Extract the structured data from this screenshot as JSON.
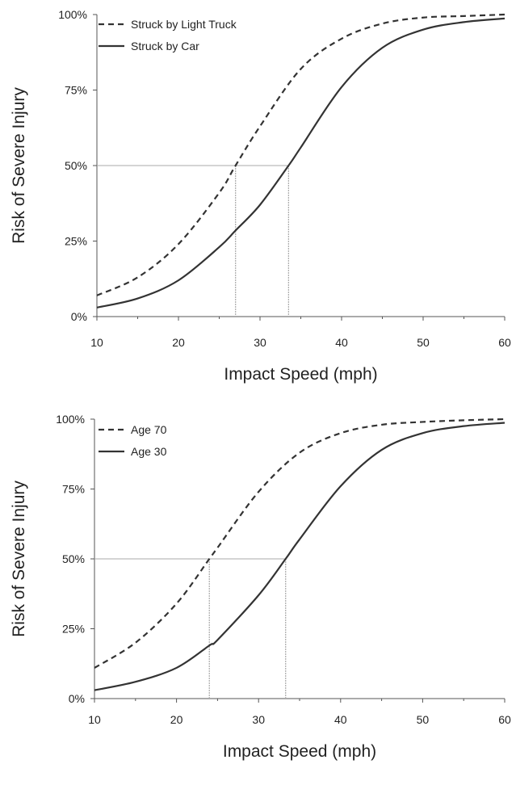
{
  "chart_data": [
    {
      "type": "line",
      "xlabel": "Impact Speed (mph)",
      "ylabel": "Risk of Severe Injury",
      "xlim": [
        10,
        60
      ],
      "ylim": [
        0,
        100
      ],
      "xticks": [
        "10",
        "20",
        "30",
        "40",
        "50",
        "60"
      ],
      "yticks": [
        "0%",
        "25%",
        "50%",
        "75%",
        "100%"
      ],
      "grid": false,
      "legend_position": "top-left",
      "series": [
        {
          "name": "Struck by Light Truck",
          "style": "dashed",
          "x": [
            10,
            15,
            20,
            25,
            27,
            30,
            35,
            40,
            45,
            50,
            55,
            60
          ],
          "y": [
            7,
            13,
            24,
            41,
            50,
            63,
            82,
            92,
            97,
            99,
            99.5,
            100
          ]
        },
        {
          "name": "Struck by Car",
          "style": "solid",
          "x": [
            10,
            15,
            20,
            25,
            27,
            30,
            33.5,
            35,
            40,
            45,
            50,
            55,
            60
          ],
          "y": [
            3,
            6,
            12,
            23,
            28.5,
            37,
            50,
            56,
            76,
            89,
            95,
            97.5,
            98.7
          ]
        }
      ],
      "reference_lines": [
        {
          "y": 50,
          "x_intercept": 27
        },
        {
          "y": 50,
          "x_intercept": 33.5
        }
      ]
    },
    {
      "type": "line",
      "xlabel": "Impact Speed (mph)",
      "ylabel": "Risk of Severe Injury",
      "xlim": [
        10,
        60
      ],
      "ylim": [
        0,
        100
      ],
      "xticks": [
        "10",
        "20",
        "30",
        "40",
        "50",
        "60"
      ],
      "yticks": [
        "0%",
        "25%",
        "50%",
        "75%",
        "100%"
      ],
      "grid": false,
      "legend_position": "top-left",
      "series": [
        {
          "name": "Age 70",
          "style": "dashed",
          "x": [
            10,
            15,
            20,
            24,
            25,
            30,
            35,
            40,
            45,
            50,
            55,
            60
          ],
          "y": [
            11,
            20,
            34,
            50,
            54,
            74,
            88,
            95,
            98,
            99,
            99.6,
            100
          ]
        },
        {
          "name": "Age 30",
          "style": "solid",
          "x": [
            10,
            15,
            20,
            24,
            25,
            30,
            33.3,
            35,
            40,
            45,
            50,
            55,
            60
          ],
          "y": [
            3,
            6,
            11,
            19,
            21,
            37,
            50,
            57,
            76,
            89,
            95,
            97.5,
            98.7
          ]
        }
      ],
      "reference_lines": [
        {
          "y": 50,
          "x_intercept": 24
        },
        {
          "y": 50,
          "x_intercept": 33.3
        }
      ]
    }
  ],
  "colors": {
    "series_line": "#333333",
    "axis": "#555555",
    "reference_line": "#aaaaaa",
    "text": "#222222"
  }
}
